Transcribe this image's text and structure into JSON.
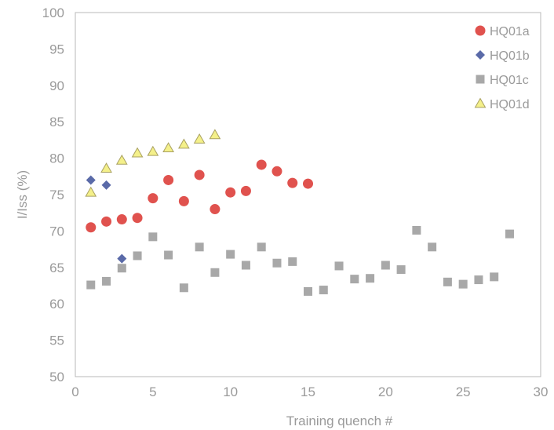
{
  "chart_data": {
    "type": "scatter",
    "title": "",
    "xlabel": "Training quench #",
    "ylabel": "I/Iss (%)",
    "xlim": [
      0,
      30
    ],
    "ylim": [
      50,
      100
    ],
    "xticks": [
      0,
      5,
      10,
      15,
      20,
      25,
      30
    ],
    "yticks": [
      50,
      55,
      60,
      65,
      70,
      75,
      80,
      85,
      90,
      95,
      100
    ],
    "grid": false,
    "legend_position": "top-right",
    "series": [
      {
        "name": "HQ01a",
        "marker": "circle",
        "color": "#e0524e",
        "points": [
          [
            1,
            70.5
          ],
          [
            2,
            71.3
          ],
          [
            3,
            71.6
          ],
          [
            4,
            71.8
          ],
          [
            5,
            74.5
          ],
          [
            6,
            77.0
          ],
          [
            7,
            74.1
          ],
          [
            8,
            77.7
          ],
          [
            9,
            73.0
          ],
          [
            10,
            75.3
          ],
          [
            11,
            75.5
          ],
          [
            12,
            79.1
          ],
          [
            13,
            78.2
          ],
          [
            14,
            76.6
          ],
          [
            15,
            76.5
          ]
        ]
      },
      {
        "name": "HQ01b",
        "marker": "diamond",
        "color": "#5a6aa8",
        "points": [
          [
            1,
            77.0
          ],
          [
            2,
            76.3
          ],
          [
            3,
            66.2
          ]
        ]
      },
      {
        "name": "HQ01c",
        "marker": "square",
        "color": "#a8a8a8",
        "points": [
          [
            1,
            62.6
          ],
          [
            2,
            63.1
          ],
          [
            3,
            64.9
          ],
          [
            4,
            66.6
          ],
          [
            5,
            69.2
          ],
          [
            6,
            66.7
          ],
          [
            7,
            62.2
          ],
          [
            8,
            67.8
          ],
          [
            9,
            64.3
          ],
          [
            10,
            66.8
          ],
          [
            11,
            65.3
          ],
          [
            12,
            67.8
          ],
          [
            13,
            65.6
          ],
          [
            14,
            65.8
          ],
          [
            15,
            61.7
          ],
          [
            16,
            61.9
          ],
          [
            17,
            65.2
          ],
          [
            18,
            63.4
          ],
          [
            19,
            63.5
          ],
          [
            20,
            65.3
          ],
          [
            21,
            64.7
          ],
          [
            22,
            70.1
          ],
          [
            23,
            67.8
          ],
          [
            24,
            63.0
          ],
          [
            25,
            62.7
          ],
          [
            26,
            63.3
          ],
          [
            27,
            63.7
          ],
          [
            28,
            69.6
          ]
        ]
      },
      {
        "name": "HQ01d",
        "marker": "triangle",
        "color": "#f4f08a",
        "stroke": "#a8a060",
        "points": [
          [
            1,
            75.3
          ],
          [
            2,
            78.6
          ],
          [
            3,
            79.7
          ],
          [
            4,
            80.7
          ],
          [
            5,
            80.9
          ],
          [
            6,
            81.4
          ],
          [
            7,
            81.9
          ],
          [
            8,
            82.6
          ],
          [
            9,
            83.2
          ]
        ]
      }
    ]
  }
}
